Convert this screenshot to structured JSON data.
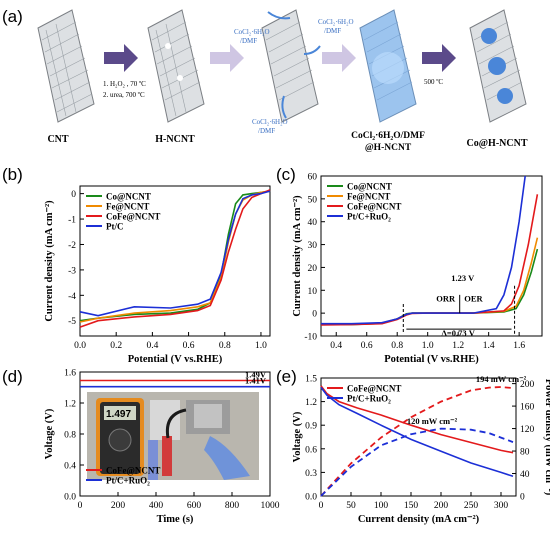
{
  "panels": {
    "a": {
      "label": "(a)",
      "stage_labels": [
        "CNT",
        "H-NCNT",
        "CoCl₂·6H₂O/DMF",
        "@H-NCNT",
        "Co@H-NCNT"
      ],
      "step1_lines": [
        "1. H₂O₂ , 70 ºC",
        "2. urea, 700 ºC"
      ],
      "reagent_label": [
        "CoCl₂·6H₂O",
        "/DMF"
      ],
      "step_temp": "500 ºC"
    },
    "b": {
      "label": "(b)"
    },
    "c": {
      "label": "(c)"
    },
    "d": {
      "label": "(d)",
      "meter_reading": "1.497"
    },
    "e": {
      "label": "(e)"
    }
  },
  "colors": {
    "Co@NCNT": "#1a8a1a",
    "Fe@NCNT": "#f08a00",
    "CoFe@NCNT": "#e31a1c",
    "Pt/C": "#1c2fd6",
    "Pt/C+RuO2": "#1c2fd6",
    "arrow": "#5b4a8a",
    "cnt": "#b9bcc0",
    "co": "#4a86d8"
  },
  "chart_data": [
    {
      "panel": "b",
      "type": "line",
      "xlabel": "Potential (V vs.RHE)",
      "ylabel": "Current density (mA cm⁻²)",
      "xlim": [
        0.0,
        1.05
      ],
      "ylim": [
        -5.6,
        0.3
      ],
      "xticks": [
        "0.0",
        "0.2",
        "0.4",
        "0.6",
        "0.8",
        "1.0"
      ],
      "xtick_values": [
        0,
        0.2,
        0.4,
        0.6,
        0.8,
        1.0
      ],
      "yticks": [
        "0",
        "-1",
        "-2",
        "-3",
        "-4",
        "-5"
      ],
      "ytick_values": [
        0,
        -1,
        -2,
        -3,
        -4,
        -5
      ],
      "legend": "top-left",
      "series": [
        {
          "name": "Co@NCNT",
          "color_key": "Co@NCNT",
          "x": [
            0,
            0.1,
            0.3,
            0.5,
            0.65,
            0.72,
            0.78,
            0.82,
            0.86,
            0.9,
            0.95,
            1.0,
            1.05
          ],
          "y": [
            -5.0,
            -4.9,
            -4.75,
            -4.7,
            -4.55,
            -4.3,
            -3.2,
            -1.6,
            -0.4,
            -0.05,
            0.0,
            0.05,
            0.1
          ]
        },
        {
          "name": "Fe@NCNT",
          "color_key": "Fe@NCNT",
          "x": [
            0,
            0.1,
            0.3,
            0.5,
            0.65,
            0.72,
            0.78,
            0.82,
            0.86,
            0.9,
            0.95,
            1.0,
            1.05
          ],
          "y": [
            -5.05,
            -4.9,
            -4.7,
            -4.6,
            -4.45,
            -4.3,
            -3.3,
            -1.9,
            -0.8,
            -0.25,
            -0.05,
            0.05,
            0.1
          ]
        },
        {
          "name": "CoFe@NCNT",
          "color_key": "CoFe@NCNT",
          "x": [
            0,
            0.1,
            0.3,
            0.5,
            0.65,
            0.72,
            0.78,
            0.82,
            0.86,
            0.9,
            0.95,
            1.0,
            1.05
          ],
          "y": [
            -5.25,
            -5.0,
            -4.85,
            -4.75,
            -4.6,
            -4.4,
            -3.4,
            -2.3,
            -1.4,
            -0.6,
            -0.15,
            0.0,
            0.15
          ]
        },
        {
          "name": "Pt/C",
          "color_key": "Pt/C",
          "x": [
            0,
            0.1,
            0.3,
            0.5,
            0.65,
            0.72,
            0.78,
            0.82,
            0.86,
            0.9,
            0.95,
            1.0,
            1.05
          ],
          "y": [
            -4.65,
            -4.8,
            -4.45,
            -4.5,
            -4.35,
            -4.15,
            -3.1,
            -1.8,
            -0.8,
            -0.2,
            -0.05,
            0.0,
            0.1
          ]
        }
      ]
    },
    {
      "panel": "c",
      "type": "line",
      "xlabel": "Potential (V vs.RHE)",
      "ylabel": "Current density (mA cm⁻²)",
      "xlim": [
        0.3,
        1.75
      ],
      "ylim": [
        -10,
        60
      ],
      "xticks": [
        "0.4",
        "0.6",
        "0.8",
        "1.0",
        "1.2",
        "1.4",
        "1.6"
      ],
      "xtick_values": [
        0.4,
        0.6,
        0.8,
        1.0,
        1.2,
        1.4,
        1.6
      ],
      "yticks": [
        "60",
        "50",
        "40",
        "30",
        "20",
        "10",
        "0",
        "-10"
      ],
      "ytick_values": [
        60,
        50,
        40,
        30,
        20,
        10,
        0,
        -10
      ],
      "legend": "top-left",
      "annotations": [
        "1.23 V",
        "ORR",
        "OER",
        "Δ=0.73 V"
      ],
      "series": [
        {
          "name": "Co@NCNT",
          "color_key": "Co@NCNT",
          "x": [
            0.3,
            0.5,
            0.7,
            0.8,
            0.86,
            0.9,
            1.0,
            1.3,
            1.5,
            1.58,
            1.63,
            1.68,
            1.72
          ],
          "y": [
            -5,
            -5,
            -4.5,
            -2.5,
            -0.3,
            0,
            0,
            0,
            0.5,
            2,
            8,
            18,
            28
          ]
        },
        {
          "name": "Fe@NCNT",
          "color_key": "Fe@NCNT",
          "x": [
            0.3,
            0.5,
            0.7,
            0.8,
            0.86,
            0.9,
            1.0,
            1.3,
            1.5,
            1.58,
            1.63,
            1.68,
            1.72
          ],
          "y": [
            -4.8,
            -4.8,
            -4.3,
            -2.5,
            -0.5,
            0,
            0,
            0,
            0.8,
            3,
            10,
            22,
            33
          ]
        },
        {
          "name": "CoFe@NCNT",
          "color_key": "CoFe@NCNT",
          "x": [
            0.3,
            0.5,
            0.7,
            0.8,
            0.86,
            0.9,
            1.0,
            1.3,
            1.5,
            1.55,
            1.6,
            1.66,
            1.72
          ],
          "y": [
            -5.2,
            -5,
            -4.6,
            -2.8,
            -0.8,
            -0.1,
            0,
            0,
            1,
            4,
            12,
            30,
            52
          ]
        },
        {
          "name": "Pt/C+RuO₂",
          "color_key": "Pt/C+RuO2",
          "x": [
            0.3,
            0.5,
            0.7,
            0.8,
            0.86,
            0.9,
            1.0,
            1.3,
            1.45,
            1.5,
            1.55,
            1.6,
            1.64
          ],
          "y": [
            -4.6,
            -4.6,
            -4.2,
            -2.5,
            -0.5,
            0,
            0,
            0,
            2,
            8,
            20,
            40,
            60
          ]
        }
      ]
    },
    {
      "panel": "d",
      "type": "line",
      "xlabel": "Time (s)",
      "ylabel": "Voltage (V)",
      "xlim": [
        0,
        1000
      ],
      "ylim": [
        0.0,
        1.6
      ],
      "xticks": [
        "0",
        "200",
        "400",
        "600",
        "800",
        "1000"
      ],
      "xtick_values": [
        0,
        200,
        400,
        600,
        800,
        1000
      ],
      "yticks": [
        "1.6",
        "1.2",
        "0.8",
        "0.4",
        "0.0"
      ],
      "ytick_values": [
        1.6,
        1.2,
        0.8,
        0.4,
        0.0
      ],
      "legend": "bottom-left",
      "annotations": [
        "1.49V",
        "1.41V"
      ],
      "series": [
        {
          "name": "CoFe@NCNT",
          "color_key": "CoFe@NCNT",
          "x": [
            0,
            1000
          ],
          "y": [
            1.49,
            1.49
          ]
        },
        {
          "name": "Pt/C+RuO₂",
          "color_key": "Pt/C+RuO2",
          "x": [
            0,
            1000
          ],
          "y": [
            1.41,
            1.41
          ]
        }
      ]
    },
    {
      "panel": "e",
      "type": "line",
      "xlabel": "Current density (mA cm⁻²)",
      "ylabel": "Voltage (V)",
      "ylabel_right": "Power density (mW cm⁻²)",
      "xlim": [
        0,
        325
      ],
      "ylim": [
        0.0,
        1.5
      ],
      "ylim_right": [
        0,
        210
      ],
      "xticks": [
        "0",
        "50",
        "100",
        "150",
        "200",
        "250",
        "300"
      ],
      "xtick_values": [
        0,
        50,
        100,
        150,
        200,
        250,
        300
      ],
      "yticks": [
        "1.5",
        "1.2",
        "0.9",
        "0.6",
        "0.3",
        "0.0"
      ],
      "ytick_values": [
        1.5,
        1.2,
        0.9,
        0.6,
        0.3,
        0.0
      ],
      "yticks_right": [
        "200",
        "160",
        "120",
        "80",
        "40",
        "0"
      ],
      "ytick_values_right": [
        200,
        160,
        120,
        80,
        40,
        0
      ],
      "legend": "top-left",
      "annotations": [
        "194 mW cm⁻²",
        "120 mW cm⁻²"
      ],
      "series": [
        {
          "name": "CoFe@NCNT",
          "color_key": "CoFe@NCNT",
          "axis": "left",
          "style": "solid",
          "x": [
            0,
            10,
            30,
            60,
            100,
            150,
            200,
            250,
            300,
            320
          ],
          "y": [
            1.4,
            1.3,
            1.2,
            1.12,
            1.03,
            0.9,
            0.78,
            0.68,
            0.58,
            0.55
          ]
        },
        {
          "name": "Pt/C+RuO₂",
          "color_key": "Pt/C+RuO2",
          "axis": "left",
          "style": "solid",
          "x": [
            0,
            10,
            30,
            60,
            100,
            150,
            200,
            250,
            300,
            320
          ],
          "y": [
            1.38,
            1.28,
            1.16,
            1.05,
            0.9,
            0.72,
            0.57,
            0.42,
            0.3,
            0.25
          ]
        },
        {
          "name": "",
          "color_key": "CoFe@NCNT",
          "axis": "right",
          "style": "dashed",
          "x": [
            0,
            50,
            100,
            150,
            200,
            250,
            280,
            300,
            320
          ],
          "y": [
            0,
            58,
            104,
            140,
            168,
            188,
            193,
            194,
            192
          ]
        },
        {
          "name": "",
          "color_key": "Pt/C+RuO2",
          "axis": "right",
          "style": "dashed",
          "x": [
            0,
            50,
            100,
            150,
            200,
            250,
            280,
            300,
            320
          ],
          "y": [
            0,
            52,
            90,
            110,
            120,
            118,
            112,
            104,
            96
          ]
        }
      ]
    }
  ]
}
